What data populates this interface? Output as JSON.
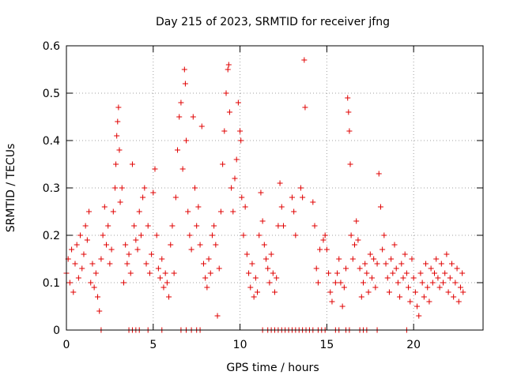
{
  "chart_data": {
    "type": "scatter",
    "title": "Day 215 of 2023, SRMTID for receiver jfng",
    "xlabel": "GPS time / hours",
    "ylabel": "SRMTID / TECUs",
    "xlim": [
      0,
      24
    ],
    "ylim": [
      0,
      0.6
    ],
    "xticks": [
      0,
      5,
      10,
      15,
      20
    ],
    "yticks": [
      0,
      0.1,
      0.2,
      0.3,
      0.4,
      0.5,
      0.6
    ],
    "xtick_labels": [
      "0",
      "5",
      "10",
      "15",
      "20"
    ],
    "ytick_labels": [
      "0",
      "0.1",
      "0.2",
      "0.3",
      "0.4",
      "0.5",
      "0.6"
    ],
    "grid": true,
    "marker": "+",
    "series_color": "#e00000",
    "series": [
      {
        "name": "SRMTID",
        "points": [
          [
            0.0,
            0.12
          ],
          [
            0.1,
            0.15
          ],
          [
            0.2,
            0.1
          ],
          [
            0.3,
            0.17
          ],
          [
            0.4,
            0.08
          ],
          [
            0.5,
            0.14
          ],
          [
            0.6,
            0.18
          ],
          [
            0.7,
            0.11
          ],
          [
            0.8,
            0.2
          ],
          [
            0.9,
            0.13
          ],
          [
            1.0,
            0.16
          ],
          [
            1.1,
            0.22
          ],
          [
            1.2,
            0.19
          ],
          [
            1.3,
            0.25
          ],
          [
            1.4,
            0.1
          ],
          [
            1.5,
            0.14
          ],
          [
            1.6,
            0.09
          ],
          [
            1.7,
            0.12
          ],
          [
            1.8,
            0.07
          ],
          [
            1.9,
            0.04
          ],
          [
            2.0,
            0.15
          ],
          [
            2.1,
            0.2
          ],
          [
            2.2,
            0.26
          ],
          [
            2.3,
            0.18
          ],
          [
            2.4,
            0.22
          ],
          [
            2.5,
            0.14
          ],
          [
            2.6,
            0.17
          ],
          [
            2.7,
            0.25
          ],
          [
            2.8,
            0.3
          ],
          [
            2.85,
            0.35
          ],
          [
            2.9,
            0.41
          ],
          [
            2.95,
            0.44
          ],
          [
            3.0,
            0.47
          ],
          [
            3.05,
            0.38
          ],
          [
            3.1,
            0.27
          ],
          [
            3.2,
            0.3
          ],
          [
            3.3,
            0.1
          ],
          [
            3.4,
            0.18
          ],
          [
            3.5,
            0.14
          ],
          [
            3.6,
            0.16
          ],
          [
            3.7,
            0.12
          ],
          [
            3.8,
            0.35
          ],
          [
            3.9,
            0.22
          ],
          [
            4.0,
            0.19
          ],
          [
            4.1,
            0.17
          ],
          [
            4.2,
            0.25
          ],
          [
            4.3,
            0.2
          ],
          [
            4.4,
            0.28
          ],
          [
            4.5,
            0.3
          ],
          [
            4.6,
            0.14
          ],
          [
            4.7,
            0.22
          ],
          [
            4.8,
            0.12
          ],
          [
            4.9,
            0.16
          ],
          [
            5.0,
            0.29
          ],
          [
            5.1,
            0.34
          ],
          [
            5.2,
            0.2
          ],
          [
            5.3,
            0.13
          ],
          [
            5.4,
            0.11
          ],
          [
            5.5,
            0.15
          ],
          [
            5.6,
            0.09
          ],
          [
            5.7,
            0.12
          ],
          [
            5.8,
            0.1
          ],
          [
            5.9,
            0.07
          ],
          [
            6.0,
            0.18
          ],
          [
            6.1,
            0.22
          ],
          [
            6.2,
            0.12
          ],
          [
            6.3,
            0.28
          ],
          [
            6.4,
            0.38
          ],
          [
            6.5,
            0.45
          ],
          [
            6.6,
            0.48
          ],
          [
            6.7,
            0.34
          ],
          [
            6.8,
            0.55
          ],
          [
            6.85,
            0.52
          ],
          [
            6.9,
            0.4
          ],
          [
            7.0,
            0.25
          ],
          [
            7.1,
            0.2
          ],
          [
            7.2,
            0.17
          ],
          [
            7.3,
            0.45
          ],
          [
            7.4,
            0.3
          ],
          [
            7.5,
            0.22
          ],
          [
            7.6,
            0.26
          ],
          [
            7.7,
            0.18
          ],
          [
            7.8,
            0.43
          ],
          [
            7.9,
            0.14
          ],
          [
            8.0,
            0.11
          ],
          [
            8.1,
            0.09
          ],
          [
            8.2,
            0.15
          ],
          [
            8.3,
            0.12
          ],
          [
            8.4,
            0.2
          ],
          [
            8.5,
            0.22
          ],
          [
            8.6,
            0.18
          ],
          [
            8.7,
            0.03
          ],
          [
            8.8,
            0.13
          ],
          [
            8.9,
            0.25
          ],
          [
            9.0,
            0.35
          ],
          [
            9.1,
            0.42
          ],
          [
            9.2,
            0.5
          ],
          [
            9.3,
            0.55
          ],
          [
            9.35,
            0.56
          ],
          [
            9.4,
            0.46
          ],
          [
            9.5,
            0.3
          ],
          [
            9.6,
            0.25
          ],
          [
            9.7,
            0.32
          ],
          [
            9.8,
            0.36
          ],
          [
            9.9,
            0.48
          ],
          [
            10.0,
            0.42
          ],
          [
            10.05,
            0.4
          ],
          [
            10.1,
            0.28
          ],
          [
            10.2,
            0.2
          ],
          [
            10.3,
            0.26
          ],
          [
            10.4,
            0.16
          ],
          [
            10.5,
            0.12
          ],
          [
            10.6,
            0.09
          ],
          [
            10.7,
            0.14
          ],
          [
            10.8,
            0.07
          ],
          [
            10.9,
            0.11
          ],
          [
            11.0,
            0.08
          ],
          [
            11.1,
            0.2
          ],
          [
            11.2,
            0.29
          ],
          [
            11.3,
            0.23
          ],
          [
            11.4,
            0.18
          ],
          [
            11.5,
            0.15
          ],
          [
            11.6,
            0.13
          ],
          [
            11.7,
            0.1
          ],
          [
            11.8,
            0.16
          ],
          [
            11.9,
            0.12
          ],
          [
            12.0,
            0.08
          ],
          [
            12.1,
            0.11
          ],
          [
            12.2,
            0.22
          ],
          [
            12.3,
            0.31
          ],
          [
            12.4,
            0.26
          ],
          [
            12.5,
            0.22
          ],
          [
            13.0,
            0.28
          ],
          [
            13.1,
            0.25
          ],
          [
            13.2,
            0.2
          ],
          [
            13.5,
            0.3
          ],
          [
            13.6,
            0.28
          ],
          [
            13.7,
            0.57
          ],
          [
            13.75,
            0.47
          ],
          [
            14.2,
            0.27
          ],
          [
            14.3,
            0.22
          ],
          [
            14.4,
            0.13
          ],
          [
            14.5,
            0.1
          ],
          [
            14.6,
            0.17
          ],
          [
            14.8,
            0.19
          ],
          [
            14.9,
            0.2
          ],
          [
            15.0,
            0.17
          ],
          [
            15.1,
            0.12
          ],
          [
            15.2,
            0.08
          ],
          [
            15.3,
            0.06
          ],
          [
            15.5,
            0.1
          ],
          [
            15.6,
            0.12
          ],
          [
            15.7,
            0.15
          ],
          [
            15.8,
            0.1
          ],
          [
            15.9,
            0.05
          ],
          [
            16.0,
            0.09
          ],
          [
            16.1,
            0.13
          ],
          [
            16.2,
            0.49
          ],
          [
            16.25,
            0.46
          ],
          [
            16.3,
            0.42
          ],
          [
            16.35,
            0.35
          ],
          [
            16.4,
            0.2
          ],
          [
            16.5,
            0.15
          ],
          [
            16.6,
            0.18
          ],
          [
            16.7,
            0.23
          ],
          [
            16.8,
            0.19
          ],
          [
            16.9,
            0.13
          ],
          [
            17.0,
            0.07
          ],
          [
            17.1,
            0.1
          ],
          [
            17.2,
            0.14
          ],
          [
            17.3,
            0.12
          ],
          [
            17.4,
            0.08
          ],
          [
            17.5,
            0.16
          ],
          [
            17.6,
            0.11
          ],
          [
            17.7,
            0.15
          ],
          [
            17.8,
            0.09
          ],
          [
            17.9,
            0.14
          ],
          [
            18.0,
            0.33
          ],
          [
            18.1,
            0.26
          ],
          [
            18.2,
            0.17
          ],
          [
            18.3,
            0.2
          ],
          [
            18.4,
            0.14
          ],
          [
            18.5,
            0.11
          ],
          [
            18.6,
            0.08
          ],
          [
            18.7,
            0.15
          ],
          [
            18.8,
            0.12
          ],
          [
            18.9,
            0.18
          ],
          [
            19.0,
            0.13
          ],
          [
            19.1,
            0.1
          ],
          [
            19.2,
            0.07
          ],
          [
            19.3,
            0.14
          ],
          [
            19.4,
            0.11
          ],
          [
            19.5,
            0.16
          ],
          [
            19.6,
            0.12
          ],
          [
            19.7,
            0.09
          ],
          [
            19.8,
            0.06
          ],
          [
            19.9,
            0.15
          ],
          [
            20.0,
            0.11
          ],
          [
            20.1,
            0.08
          ],
          [
            20.2,
            0.05
          ],
          [
            20.3,
            0.03
          ],
          [
            20.4,
            0.12
          ],
          [
            20.5,
            0.1
          ],
          [
            20.6,
            0.07
          ],
          [
            20.7,
            0.14
          ],
          [
            20.8,
            0.09
          ],
          [
            20.9,
            0.06
          ],
          [
            21.0,
            0.13
          ],
          [
            21.1,
            0.1
          ],
          [
            21.2,
            0.12
          ],
          [
            21.3,
            0.15
          ],
          [
            21.4,
            0.11
          ],
          [
            21.5,
            0.09
          ],
          [
            21.6,
            0.14
          ],
          [
            21.7,
            0.1
          ],
          [
            21.8,
            0.12
          ],
          [
            21.9,
            0.16
          ],
          [
            22.0,
            0.08
          ],
          [
            22.1,
            0.11
          ],
          [
            22.2,
            0.14
          ],
          [
            22.3,
            0.07
          ],
          [
            22.4,
            0.1
          ],
          [
            22.5,
            0.13
          ],
          [
            22.6,
            0.06
          ],
          [
            22.7,
            0.09
          ],
          [
            22.8,
            0.12
          ],
          [
            22.85,
            0.08
          ],
          [
            2.0,
            0.0
          ],
          [
            3.6,
            0.0
          ],
          [
            3.8,
            0.0
          ],
          [
            4.0,
            0.0
          ],
          [
            4.2,
            0.0
          ],
          [
            4.7,
            0.0
          ],
          [
            5.5,
            0.0
          ],
          [
            6.6,
            0.0
          ],
          [
            6.9,
            0.0
          ],
          [
            7.2,
            0.0
          ],
          [
            7.5,
            0.0
          ],
          [
            7.7,
            0.0
          ],
          [
            11.3,
            0.0
          ],
          [
            11.6,
            0.0
          ],
          [
            11.8,
            0.0
          ],
          [
            12.0,
            0.0
          ],
          [
            12.2,
            0.0
          ],
          [
            12.4,
            0.0
          ],
          [
            12.6,
            0.0
          ],
          [
            12.8,
            0.0
          ],
          [
            13.0,
            0.0
          ],
          [
            13.2,
            0.0
          ],
          [
            13.4,
            0.0
          ],
          [
            13.6,
            0.0
          ],
          [
            13.8,
            0.0
          ],
          [
            14.0,
            0.0
          ],
          [
            14.2,
            0.0
          ],
          [
            14.5,
            0.0
          ],
          [
            14.7,
            0.0
          ],
          [
            14.9,
            0.0
          ],
          [
            15.5,
            0.0
          ],
          [
            15.7,
            0.0
          ],
          [
            16.1,
            0.0
          ],
          [
            16.3,
            0.0
          ],
          [
            16.9,
            0.0
          ],
          [
            17.1,
            0.0
          ],
          [
            17.3,
            0.0
          ],
          [
            17.9,
            0.0
          ],
          [
            19.6,
            0.0
          ]
        ]
      }
    ]
  }
}
